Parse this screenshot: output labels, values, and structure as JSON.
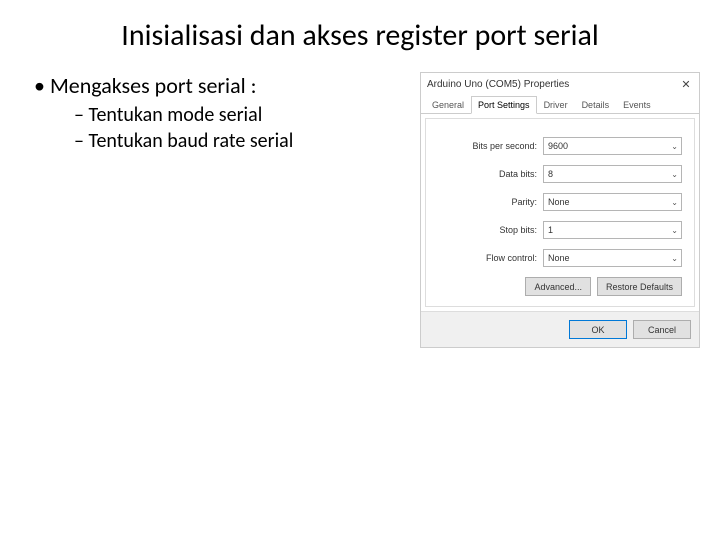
{
  "slide": {
    "title": "Inisialisasi  dan akses register port serial",
    "bullet_main": "Mengakses port serial :",
    "sub1": "Tentukan mode serial",
    "sub2": "Tentukan baud rate serial"
  },
  "dialog": {
    "title": "Arduino Uno (COM5) Properties",
    "close_glyph": "✕",
    "tabs": {
      "general": "General",
      "port_settings": "Port Settings",
      "driver": "Driver",
      "details": "Details",
      "events": "Events"
    },
    "fields": {
      "bits_per_second": {
        "label": "Bits per second:",
        "value": "9600"
      },
      "data_bits": {
        "label": "Data bits:",
        "value": "8"
      },
      "parity": {
        "label": "Parity:",
        "value": "None"
      },
      "stop_bits": {
        "label": "Stop bits:",
        "value": "1"
      },
      "flow_control": {
        "label": "Flow control:",
        "value": "None"
      }
    },
    "buttons": {
      "advanced": "Advanced...",
      "restore": "Restore Defaults",
      "ok": "OK",
      "cancel": "Cancel"
    }
  }
}
